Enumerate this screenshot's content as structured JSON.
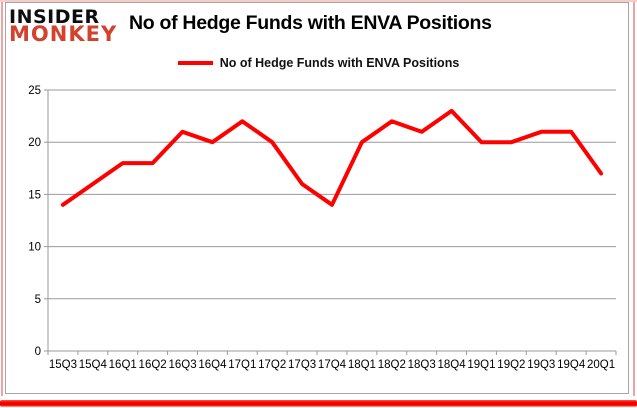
{
  "colors": {
    "line": "#ff0000",
    "grid": "#9a9a9a",
    "axis": "#9a9a9a",
    "frame_border": "#a6a6a6",
    "glow_red": "#f40000",
    "glow_mid": "#f0a2a2",
    "glow_soft": "#f8ccc8",
    "logo_black": "#0d0d0d",
    "logo_red": "#d2422c"
  },
  "logo": {
    "line1": "INSIDER",
    "line2": "MONKEY"
  },
  "header": {
    "title": "No of Hedge Funds with ENVA Positions"
  },
  "legend": {
    "label": "No of Hedge Funds with ENVA Positions"
  },
  "chart_data": {
    "type": "line",
    "title": "No of Hedge Funds with ENVA Positions",
    "categories": [
      "15Q3",
      "15Q4",
      "16Q1",
      "16Q2",
      "16Q3",
      "16Q4",
      "17Q1",
      "17Q2",
      "17Q3",
      "17Q4",
      "18Q1",
      "18Q2",
      "18Q3",
      "18Q4",
      "19Q1",
      "19Q2",
      "19Q3",
      "19Q4",
      "20Q1"
    ],
    "series": [
      {
        "name": "No of Hedge Funds with ENVA Positions",
        "color": "#ff0000",
        "values": [
          14,
          16,
          18,
          18,
          21,
          20,
          22,
          20,
          16,
          14,
          20,
          22,
          21,
          23,
          20,
          20,
          21,
          21,
          17
        ]
      }
    ],
    "xlabel": "",
    "ylabel": "",
    "ylim": [
      0,
      25
    ],
    "yticks": [
      0,
      5,
      10,
      15,
      20,
      25
    ],
    "grid": "horizontal",
    "legend_position": "top-center"
  }
}
